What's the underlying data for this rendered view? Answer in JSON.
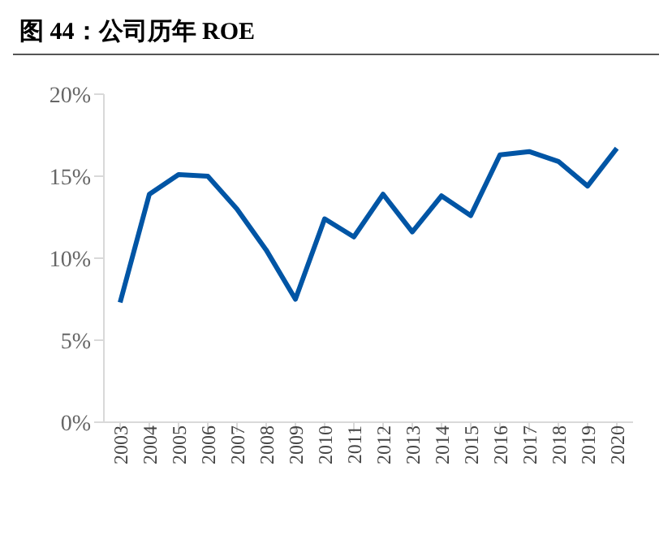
{
  "chart_data": {
    "type": "line",
    "title": "图 44：公司历年 ROE",
    "categories": [
      "2003",
      "2004",
      "2005",
      "2006",
      "2007",
      "2008",
      "2009",
      "2010",
      "2011",
      "2012",
      "2013",
      "2014",
      "2015",
      "2016",
      "2017",
      "2018",
      "2019",
      "2020"
    ],
    "series": [
      {
        "color": "#0055a5",
        "values": [
          7.3,
          13.9,
          15.1,
          15.0,
          13.0,
          10.5,
          7.5,
          12.4,
          11.3,
          13.9,
          11.6,
          13.8,
          12.6,
          16.3,
          16.5,
          15.9,
          14.4,
          16.7
        ]
      }
    ],
    "ylim": [
      0,
      20
    ],
    "yticks": [
      {
        "value": 0,
        "label": "0%"
      },
      {
        "value": 5,
        "label": "5%"
      },
      {
        "value": 10,
        "label": "10%"
      },
      {
        "value": 15,
        "label": "15%"
      },
      {
        "value": 20,
        "label": "20%"
      }
    ],
    "grid": false,
    "legend": false,
    "marker": "none",
    "line_style": "solid"
  }
}
